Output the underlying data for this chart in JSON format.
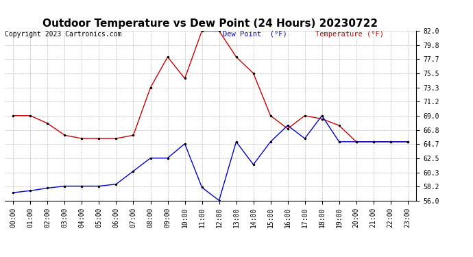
{
  "title": "Outdoor Temperature vs Dew Point (24 Hours) 20230722",
  "copyright": "Copyright 2023 Cartronics.com",
  "legend_dew": "Dew Point  (°F)",
  "legend_temp": "Temperature (°F)",
  "hours": [
    "00:00",
    "01:00",
    "02:00",
    "03:00",
    "04:00",
    "05:00",
    "06:00",
    "07:00",
    "08:00",
    "09:00",
    "10:00",
    "11:00",
    "12:00",
    "13:00",
    "14:00",
    "15:00",
    "16:00",
    "17:00",
    "18:00",
    "19:00",
    "20:00",
    "21:00",
    "22:00",
    "23:00"
  ],
  "temperature": [
    69.0,
    69.0,
    67.8,
    66.0,
    65.5,
    65.5,
    65.5,
    66.0,
    73.3,
    78.0,
    74.7,
    82.0,
    82.0,
    78.0,
    75.5,
    69.0,
    67.0,
    69.0,
    68.5,
    67.5,
    65.0,
    65.0,
    65.0,
    65.0
  ],
  "dew_point": [
    57.2,
    57.5,
    57.9,
    58.2,
    58.2,
    58.2,
    58.5,
    60.5,
    62.5,
    62.5,
    64.7,
    58.0,
    56.0,
    65.0,
    61.5,
    65.0,
    67.5,
    65.5,
    69.0,
    65.0,
    65.0,
    65.0,
    65.0,
    65.0
  ],
  "temp_color": "#cc0000",
  "dew_color": "#0000cc",
  "ylim_min": 56.0,
  "ylim_max": 82.0,
  "yticks": [
    56.0,
    58.2,
    60.3,
    62.5,
    64.7,
    66.8,
    69.0,
    71.2,
    73.3,
    75.5,
    77.7,
    79.8,
    82.0
  ],
  "bg_color": "#ffffff",
  "grid_color": "#b0b0b0",
  "marker": ".",
  "marker_color": "#000000",
  "marker_size": 3,
  "line_width": 1.0,
  "title_fontsize": 11,
  "tick_fontsize": 7,
  "copyright_fontsize": 7,
  "legend_fontsize": 7.5
}
